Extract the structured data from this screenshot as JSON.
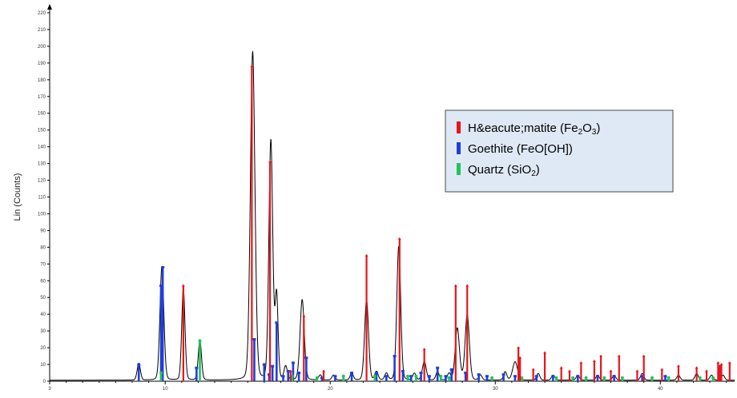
{
  "chart_data": {
    "type": "line",
    "title": "",
    "xlabel": "",
    "ylabel": "Lin (Counts)",
    "xlim": [
      3,
      44.5
    ],
    "ylim": [
      0,
      220
    ],
    "x_ticks": [
      3,
      10,
      20,
      30,
      40
    ],
    "y_ticks": [
      0,
      10,
      20,
      30,
      40,
      50,
      60,
      70,
      80,
      90,
      100,
      110,
      120,
      130,
      140,
      150,
      160,
      170,
      180,
      190,
      200,
      210,
      220
    ],
    "grid": false,
    "legend_position": "top-right",
    "colors": {
      "pattern": "#000000",
      "hematite": "#e8141b",
      "goethite": "#1f3fd8",
      "quartz": "#22c45a",
      "legend_bg": "#dfe9f5",
      "legend_border": "#4a4a4a"
    },
    "pattern": {
      "name": "",
      "peaks": [
        {
          "x": 8.4,
          "h": 10,
          "w": 0.1
        },
        {
          "x": 9.8,
          "h": 68,
          "w": 0.12
        },
        {
          "x": 11.1,
          "h": 55,
          "w": 0.1
        },
        {
          "x": 12.1,
          "h": 24,
          "w": 0.1
        },
        {
          "x": 15.3,
          "h": 196,
          "w": 0.14
        },
        {
          "x": 16.4,
          "h": 143,
          "w": 0.12
        },
        {
          "x": 16.75,
          "h": 50,
          "w": 0.09
        },
        {
          "x": 17.3,
          "h": 8,
          "w": 0.1
        },
        {
          "x": 18.3,
          "h": 48,
          "w": 0.13
        },
        {
          "x": 19.4,
          "h": 3,
          "w": 0.1
        },
        {
          "x": 20.2,
          "h": 3,
          "w": 0.1
        },
        {
          "x": 21.3,
          "h": 4,
          "w": 0.1
        },
        {
          "x": 22.2,
          "h": 48,
          "w": 0.12
        },
        {
          "x": 22.8,
          "h": 5,
          "w": 0.1
        },
        {
          "x": 23.4,
          "h": 4,
          "w": 0.1
        },
        {
          "x": 24.15,
          "h": 80,
          "w": 0.12
        },
        {
          "x": 25.1,
          "h": 4,
          "w": 0.1
        },
        {
          "x": 25.7,
          "h": 11,
          "w": 0.12
        },
        {
          "x": 26.5,
          "h": 5,
          "w": 0.1
        },
        {
          "x": 27.2,
          "h": 4,
          "w": 0.1
        },
        {
          "x": 27.7,
          "h": 31,
          "w": 0.13
        },
        {
          "x": 28.3,
          "h": 39,
          "w": 0.13
        },
        {
          "x": 29.1,
          "h": 3,
          "w": 0.1
        },
        {
          "x": 30.6,
          "h": 5,
          "w": 0.1
        },
        {
          "x": 31.2,
          "h": 11,
          "w": 0.15
        },
        {
          "x": 32.6,
          "h": 4,
          "w": 0.1
        },
        {
          "x": 33.5,
          "h": 3,
          "w": 0.1
        },
        {
          "x": 35.0,
          "h": 3,
          "w": 0.1
        },
        {
          "x": 36.2,
          "h": 3,
          "w": 0.1
        },
        {
          "x": 37.2,
          "h": 3,
          "w": 0.1
        },
        {
          "x": 38.9,
          "h": 4,
          "w": 0.1
        },
        {
          "x": 41.1,
          "h": 3,
          "w": 0.1
        },
        {
          "x": 42.2,
          "h": 4,
          "w": 0.1
        },
        {
          "x": 43.1,
          "h": 3,
          "w": 0.1
        },
        {
          "x": 43.8,
          "h": 3,
          "w": 0.1
        }
      ]
    },
    "series": [
      {
        "name": "Hématite (Fe2O3)",
        "color": "#e8141b",
        "sticks": [
          {
            "x": 11.1,
            "y": 57
          },
          {
            "x": 15.25,
            "y": 188
          },
          {
            "x": 16.35,
            "y": 131
          },
          {
            "x": 17.6,
            "y": 6
          },
          {
            "x": 18.4,
            "y": 39
          },
          {
            "x": 19.6,
            "y": 6
          },
          {
            "x": 22.2,
            "y": 75
          },
          {
            "x": 24.2,
            "y": 85
          },
          {
            "x": 25.7,
            "y": 19
          },
          {
            "x": 27.6,
            "y": 57
          },
          {
            "x": 28.3,
            "y": 57
          },
          {
            "x": 31.4,
            "y": 20
          },
          {
            "x": 31.5,
            "y": 14
          },
          {
            "x": 32.3,
            "y": 7
          },
          {
            "x": 33.0,
            "y": 17
          },
          {
            "x": 34.0,
            "y": 8
          },
          {
            "x": 34.5,
            "y": 6
          },
          {
            "x": 35.2,
            "y": 11
          },
          {
            "x": 36.0,
            "y": 12
          },
          {
            "x": 36.4,
            "y": 15
          },
          {
            "x": 37.0,
            "y": 6
          },
          {
            "x": 37.5,
            "y": 15
          },
          {
            "x": 38.6,
            "y": 6
          },
          {
            "x": 39.0,
            "y": 15
          },
          {
            "x": 40.1,
            "y": 7
          },
          {
            "x": 41.1,
            "y": 9
          },
          {
            "x": 42.2,
            "y": 8
          },
          {
            "x": 42.8,
            "y": 6
          },
          {
            "x": 43.5,
            "y": 11
          },
          {
            "x": 43.6,
            "y": 9
          },
          {
            "x": 43.7,
            "y": 10
          },
          {
            "x": 44.2,
            "y": 11
          }
        ]
      },
      {
        "name": "Goethite (FeO[OH])",
        "color": "#1f3fd8",
        "sticks": [
          {
            "x": 8.4,
            "y": 10
          },
          {
            "x": 9.75,
            "y": 57
          },
          {
            "x": 9.85,
            "y": 68
          },
          {
            "x": 11.9,
            "y": 8
          },
          {
            "x": 15.4,
            "y": 25
          },
          {
            "x": 16.0,
            "y": 10
          },
          {
            "x": 16.3,
            "y": 4
          },
          {
            "x": 16.5,
            "y": 9
          },
          {
            "x": 16.75,
            "y": 35
          },
          {
            "x": 17.15,
            "y": 3
          },
          {
            "x": 17.45,
            "y": 6
          },
          {
            "x": 17.75,
            "y": 11
          },
          {
            "x": 18.1,
            "y": 5
          },
          {
            "x": 18.55,
            "y": 14
          },
          {
            "x": 19.5,
            "y": 2
          },
          {
            "x": 20.3,
            "y": 3
          },
          {
            "x": 21.3,
            "y": 5
          },
          {
            "x": 22.8,
            "y": 5
          },
          {
            "x": 23.4,
            "y": 3
          },
          {
            "x": 23.9,
            "y": 15
          },
          {
            "x": 24.4,
            "y": 6
          },
          {
            "x": 24.9,
            "y": 3
          },
          {
            "x": 25.5,
            "y": 5
          },
          {
            "x": 26.0,
            "y": 3
          },
          {
            "x": 26.5,
            "y": 8
          },
          {
            "x": 27.0,
            "y": 3
          },
          {
            "x": 27.35,
            "y": 7
          },
          {
            "x": 28.2,
            "y": 5
          },
          {
            "x": 29.0,
            "y": 4
          },
          {
            "x": 29.5,
            "y": 3
          },
          {
            "x": 30.5,
            "y": 4
          },
          {
            "x": 31.2,
            "y": 3
          },
          {
            "x": 32.5,
            "y": 3
          },
          {
            "x": 33.5,
            "y": 3
          },
          {
            "x": 35.0,
            "y": 3
          },
          {
            "x": 36.2,
            "y": 3
          },
          {
            "x": 37.2,
            "y": 3
          },
          {
            "x": 38.9,
            "y": 3
          },
          {
            "x": 40.3,
            "y": 3
          }
        ]
      },
      {
        "name": "Quartz (SiO2)",
        "color": "#22c45a",
        "sticks": [
          {
            "x": 9.75,
            "y": 5
          },
          {
            "x": 12.1,
            "y": 24
          },
          {
            "x": 17.7,
            "y": 3
          },
          {
            "x": 19.2,
            "y": 2
          },
          {
            "x": 20.8,
            "y": 3
          },
          {
            "x": 22.7,
            "y": 3
          },
          {
            "x": 24.7,
            "y": 3
          },
          {
            "x": 25.2,
            "y": 3
          },
          {
            "x": 26.7,
            "y": 3
          },
          {
            "x": 27.2,
            "y": 2
          },
          {
            "x": 29.8,
            "y": 2
          },
          {
            "x": 31.6,
            "y": 2
          },
          {
            "x": 33.7,
            "y": 2
          },
          {
            "x": 34.7,
            "y": 2
          },
          {
            "x": 35.5,
            "y": 2
          },
          {
            "x": 36.6,
            "y": 2
          },
          {
            "x": 37.7,
            "y": 2
          },
          {
            "x": 39.5,
            "y": 2
          },
          {
            "x": 40.5,
            "y": 2
          },
          {
            "x": 42.4,
            "y": 2
          },
          {
            "x": 43.2,
            "y": 2
          }
        ]
      }
    ],
    "legend": [
      {
        "label_main": "H&eacute;matite (Fe",
        "sub1": "2",
        "mid": "O",
        "sub2": "3",
        "tail": ")",
        "color": "#e8141b"
      },
      {
        "label_main": "Goethite (FeO[OH])",
        "sub1": "",
        "mid": "",
        "sub2": "",
        "tail": "",
        "color": "#1f3fd8"
      },
      {
        "label_main": "Quartz (SiO",
        "sub1": "2",
        "mid": "",
        "sub2": "",
        "tail": ")",
        "color": "#22c45a"
      }
    ]
  }
}
